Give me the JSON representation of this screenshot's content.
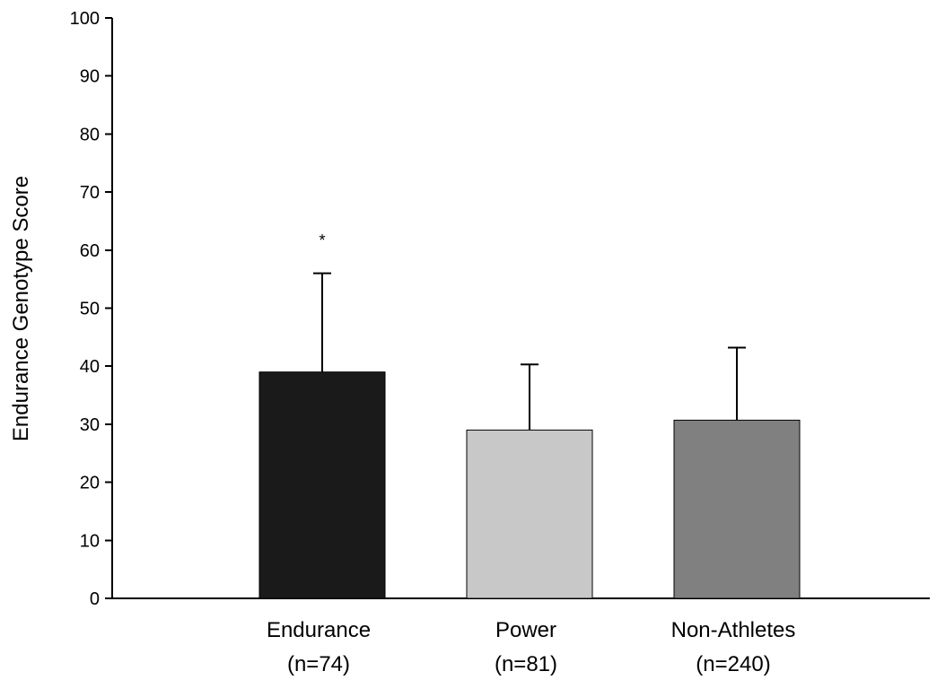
{
  "chart_data": {
    "type": "bar",
    "title": "",
    "xlabel": "",
    "ylabel": "Endurance Genotype Score",
    "ylim": [
      0,
      100
    ],
    "yticks": [
      0,
      10,
      20,
      30,
      40,
      50,
      60,
      70,
      80,
      90,
      100
    ],
    "categories": [
      {
        "name": "Endurance",
        "n_label": "(n=74)"
      },
      {
        "name": "Power",
        "n_label": "(n=81)"
      },
      {
        "name": "Non-Athletes",
        "n_label": "(n=240)"
      }
    ],
    "values": [
      39,
      29,
      30.7
    ],
    "error_upper": [
      56,
      40.3,
      43.2
    ],
    "bar_colors": [
      "#1a1a1a",
      "#c8c8c8",
      "#7f807f"
    ],
    "annotations": [
      {
        "category_index": 0,
        "text": "*",
        "y": 62
      }
    ],
    "grid": false
  }
}
